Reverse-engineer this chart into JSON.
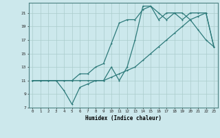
{
  "xlabel": "Humidex (Indice chaleur)",
  "bg_color": "#cce8ec",
  "grid_color": "#aacccc",
  "line_color": "#2d7a7a",
  "xlim": [
    -0.5,
    23.5
  ],
  "ylim": [
    7,
    22.5
  ],
  "xticks": [
    0,
    1,
    2,
    3,
    4,
    5,
    6,
    7,
    8,
    9,
    10,
    11,
    12,
    13,
    14,
    15,
    16,
    17,
    18,
    19,
    20,
    21,
    22,
    23
  ],
  "yticks": [
    7,
    9,
    11,
    13,
    15,
    17,
    19,
    21
  ],
  "line1_x": [
    0,
    1,
    2,
    3,
    4,
    5,
    6,
    7,
    8,
    9,
    10,
    11,
    12,
    13,
    14,
    15,
    16,
    17,
    18,
    19,
    20,
    21,
    22,
    23
  ],
  "line1_y": [
    11,
    11,
    11,
    11,
    11,
    11,
    11,
    11,
    11,
    11,
    11.5,
    12,
    12.5,
    13,
    14,
    15,
    16,
    17,
    18,
    19,
    20,
    20.5,
    21,
    16
  ],
  "line2_x": [
    0,
    1,
    2,
    3,
    4,
    5,
    6,
    7,
    8,
    9,
    10,
    11,
    12,
    13,
    14,
    15,
    16,
    17,
    18,
    19,
    20,
    21,
    22,
    23
  ],
  "line2_y": [
    11,
    11,
    11,
    11,
    11,
    11,
    12,
    12,
    13,
    13.5,
    16.5,
    19.5,
    20,
    20,
    21.5,
    22,
    21,
    20,
    21,
    21,
    20,
    18.5,
    17,
    16
  ],
  "line3_x": [
    0,
    1,
    2,
    3,
    4,
    5,
    6,
    7,
    8,
    9,
    10,
    11,
    12,
    13,
    14,
    15,
    16,
    17,
    18,
    19,
    20,
    21,
    22,
    23
  ],
  "line3_y": [
    11,
    11,
    11,
    11,
    9.5,
    7.5,
    10,
    10.5,
    11,
    11,
    13,
    11,
    13,
    17,
    22,
    22,
    20,
    21,
    21,
    20,
    21,
    21,
    21,
    16
  ]
}
